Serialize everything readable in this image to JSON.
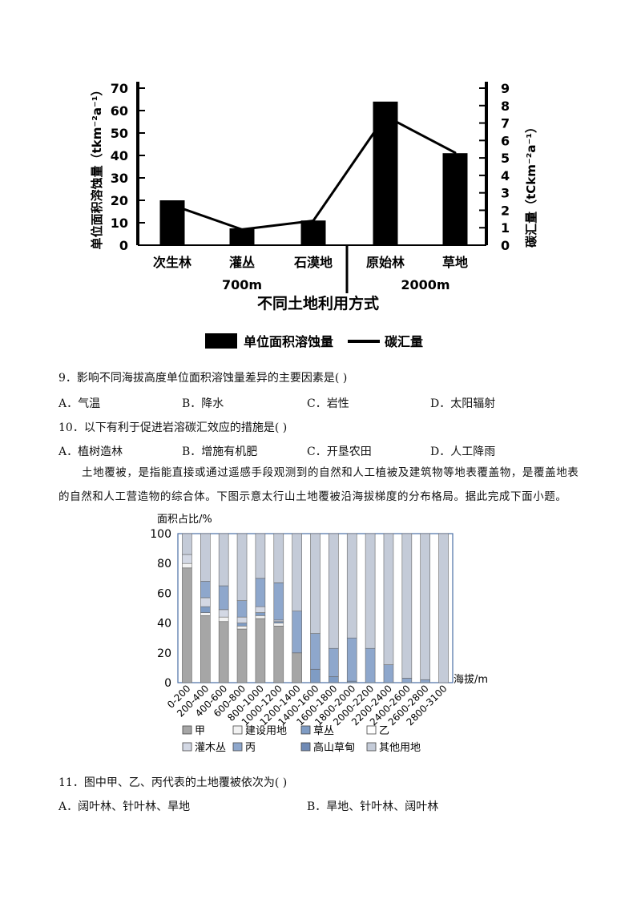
{
  "chart_data": [
    {
      "type": "bar+line",
      "categories": [
        "次生林",
        "灌丛",
        "石漠地",
        "原始林",
        "草地"
      ],
      "category_groups": [
        {
          "label": "700m",
          "categories": [
            "次生林",
            "灌丛",
            "石漠地"
          ]
        },
        {
          "label": "2000m",
          "categories": [
            "原始林",
            "草地"
          ]
        }
      ],
      "xlabel": "不同土地利用方式",
      "ylabel_left": "单位面积溶蚀量（tkm⁻²a⁻¹）",
      "ylabel_right": "碳汇量（tCkm⁻²a⁻¹）",
      "ylim_left": [
        0,
        70
      ],
      "ylim_right": [
        0,
        9
      ],
      "yticks_left": [
        "0",
        "10",
        "20",
        "30",
        "40",
        "50",
        "60",
        "70"
      ],
      "yticks_right": [
        "0",
        "1",
        "2",
        "3",
        "4",
        "5",
        "6",
        "7",
        "8",
        "9"
      ],
      "series": [
        {
          "name": "单位面积溶蚀量",
          "kind": "bar",
          "axis": "left",
          "values": [
            20,
            7.5,
            11,
            64,
            41
          ]
        },
        {
          "name": "碳汇量",
          "kind": "line",
          "axis": "right",
          "values": [
            2.3,
            0.9,
            1.4,
            7.4,
            5.3
          ]
        }
      ],
      "legend": "bottom"
    },
    {
      "type": "stacked-bar",
      "ylabel": "面积占比/%",
      "xlabel": "海拔/m",
      "ylim": [
        0,
        100
      ],
      "yticks": [
        "0",
        "20",
        "40",
        "60",
        "80",
        "100"
      ],
      "categories": [
        "0-200",
        "200-400",
        "400-600",
        "600-800",
        "800-1000",
        "1000-1200",
        "1200-1400",
        "1400-1600",
        "1600-1800",
        "1800-2000",
        "2000-2200",
        "2200-2400",
        "2400-2600",
        "2600-2800",
        "2800-3100"
      ],
      "series": [
        {
          "name": "甲",
          "color": "#a6a6a6",
          "values": [
            77,
            45,
            41,
            36,
            43,
            38,
            20,
            0,
            0,
            0,
            0,
            0,
            0,
            0,
            0
          ]
        },
        {
          "name": "建设用地",
          "color": "#f2f2f2",
          "values": [
            3,
            2,
            3,
            2,
            2,
            2,
            0,
            0,
            0,
            0,
            0,
            0,
            0,
            0,
            0
          ]
        },
        {
          "name": "草丛",
          "color": "#7f9cc4",
          "values": [
            0,
            4,
            0,
            2,
            2,
            1,
            0,
            9,
            4,
            1,
            0,
            0,
            0,
            0,
            0
          ]
        },
        {
          "name": "乙",
          "color": "#ffffff",
          "values": [
            0,
            0,
            0,
            0,
            0,
            0,
            0,
            0,
            0,
            0,
            0,
            0,
            0,
            0,
            0
          ]
        },
        {
          "name": "灌木丛",
          "color": "#d3d8e4",
          "values": [
            6,
            6,
            5,
            4,
            4,
            1,
            0,
            0,
            0,
            0,
            0,
            0,
            0,
            0,
            0
          ]
        },
        {
          "name": "丙",
          "color": "#8ea7cc",
          "values": [
            0,
            11,
            16,
            11,
            19,
            25,
            28,
            24,
            19,
            29,
            23,
            12,
            3,
            2,
            0
          ]
        },
        {
          "name": "高山草甸",
          "color": "#6f8ab5",
          "values": [
            0,
            0,
            0,
            0,
            0,
            0,
            0,
            0,
            0,
            0,
            0,
            0,
            0,
            0,
            0
          ]
        },
        {
          "name": "其他用地",
          "color": "#c4cbd8",
          "values": [
            14,
            32,
            35,
            45,
            30,
            33,
            52,
            67,
            77,
            70,
            77,
            88,
            97,
            98,
            100
          ]
        }
      ],
      "legend": "bottom"
    }
  ],
  "chart1": {
    "yticks_left": [
      "0",
      "10",
      "20",
      "30",
      "40",
      "50",
      "60",
      "70"
    ],
    "yticks_right": [
      "0",
      "1",
      "2",
      "3",
      "4",
      "5",
      "6",
      "7",
      "8",
      "9"
    ]
  },
  "questions": {
    "q9": {
      "stem": "9．影响不同海拔高度单位面积溶蚀量差异的主要因素是(    )",
      "options": [
        "A．气温",
        "B．降水",
        "C．岩性",
        "D．太阳辐射"
      ]
    },
    "q10": {
      "stem": "10．以下有利于促进岩溶碳汇效应的措施是(    )",
      "options": [
        "A．植树造林",
        "B．增施有机肥",
        "C．开垦农田",
        "D．人工降雨"
      ]
    },
    "passage_line1": "土地覆被，是指能直接或通过遥感手段观测到的自然和人工植被及建筑物等地表覆盖物，是覆盖地表",
    "passage_line2": "的自然和人工营造物的综合体。下图示意太行山土地覆被沿海拔梯度的分布格局。据此完成下面小题。",
    "q11": {
      "stem": "11．图中甲、乙、丙代表的土地覆被依次为(    )",
      "options": [
        "A．阔叶林、针叶林、旱地",
        "B．旱地、针叶林、阔叶林"
      ]
    }
  }
}
